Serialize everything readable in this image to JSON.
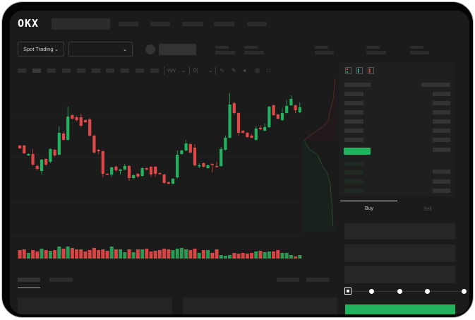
{
  "logo": {
    "text": "OKX"
  },
  "market_selector": {
    "label": "Spot Trading"
  },
  "trade_tabs": {
    "buy": "Buy",
    "sell": "Sell"
  },
  "colors": {
    "up": "#22b35e",
    "down": "#e04848",
    "background": "#1b1b1b",
    "panel": "#1f1f1f"
  },
  "icons": [
    "chevron-down-icon",
    "indicator-icon",
    "line-tool-icon",
    "pencil-icon",
    "camera-icon",
    "settings-icon",
    "fullscreen-icon",
    "orderbook-both-icon",
    "orderbook-bids-icon",
    "orderbook-asks-icon"
  ],
  "order_form": {
    "amount_slider_percent": 0
  },
  "chart_data": {
    "type": "candlestick",
    "title": "",
    "xlabel": "",
    "ylabel": "",
    "grid": true,
    "candles": [
      [
        197,
        198,
        192,
        193
      ],
      [
        197,
        198,
        185,
        186
      ],
      [
        183,
        186,
        182,
        185
      ],
      [
        185,
        192,
        168,
        170
      ],
      [
        168,
        170,
        162,
        164
      ],
      [
        161,
        178,
        156,
        177
      ],
      [
        178,
        179,
        168,
        170
      ],
      [
        174,
        193,
        172,
        192
      ],
      [
        191,
        192,
        181,
        183
      ],
      [
        184,
        224,
        183,
        215
      ],
      [
        214,
        217,
        204,
        205
      ],
      [
        205,
        252,
        204,
        238
      ],
      [
        240,
        241,
        234,
        235
      ],
      [
        237,
        239,
        231,
        233
      ],
      [
        237,
        242,
        223,
        225
      ],
      [
        233,
        234,
        229,
        230
      ],
      [
        234,
        236,
        210,
        211
      ],
      [
        211,
        212,
        186,
        187
      ],
      [
        191,
        192,
        185,
        189
      ],
      [
        189,
        190,
        152,
        157
      ],
      [
        157,
        158,
        155,
        156
      ],
      [
        156,
        167,
        153,
        166
      ],
      [
        167,
        169,
        160,
        162
      ],
      [
        161,
        164,
        156,
        163
      ],
      [
        163,
        171,
        162,
        168
      ],
      [
        168,
        169,
        147,
        151
      ],
      [
        151,
        156,
        149,
        155
      ],
      [
        157,
        158,
        151,
        153
      ],
      [
        154,
        166,
        153,
        165
      ],
      [
        165,
        166,
        162,
        163
      ],
      [
        167,
        168,
        153,
        156
      ],
      [
        167,
        168,
        153,
        157
      ],
      [
        158,
        159,
        156,
        157
      ],
      [
        156,
        157,
        143,
        144
      ],
      [
        145,
        146,
        142,
        143
      ],
      [
        143,
        151,
        142,
        150
      ],
      [
        152,
        190,
        150,
        184
      ],
      [
        185,
        191,
        184,
        190
      ],
      [
        190,
        205,
        189,
        200
      ],
      [
        199,
        200,
        186,
        187
      ],
      [
        194,
        199,
        167,
        169
      ],
      [
        168,
        172,
        165,
        169
      ],
      [
        172,
        173,
        166,
        167
      ],
      [
        165,
        170,
        164,
        169
      ],
      [
        171,
        172,
        159,
        170
      ],
      [
        168,
        174,
        166,
        167
      ],
      [
        168,
        195,
        167,
        192
      ],
      [
        191,
        211,
        190,
        208
      ],
      [
        208,
        271,
        207,
        255
      ],
      [
        257,
        259,
        241,
        243
      ],
      [
        243,
        244,
        211,
        215
      ],
      [
        218,
        219,
        214,
        215
      ],
      [
        215,
        216,
        208,
        209
      ],
      [
        211,
        213,
        207,
        208
      ],
      [
        205,
        224,
        204,
        221
      ],
      [
        222,
        226,
        219,
        220
      ],
      [
        218,
        228,
        217,
        223
      ],
      [
        223,
        253,
        222,
        252
      ],
      [
        254,
        255,
        239,
        240
      ],
      [
        241,
        242,
        234,
        235
      ],
      [
        233,
        250,
        232,
        243
      ],
      [
        243,
        261,
        242,
        253
      ],
      [
        254,
        268,
        253,
        263
      ],
      [
        254,
        255,
        243,
        247
      ],
      [
        244,
        258,
        243,
        251
      ]
    ],
    "volume": [
      12,
      13,
      8,
      12,
      10,
      14,
      12,
      11,
      12,
      17,
      14,
      17,
      15,
      13,
      13,
      10,
      12,
      15,
      12,
      13,
      11,
      17,
      13,
      13,
      9,
      13,
      9,
      13,
      13,
      14,
      10,
      11,
      12,
      14,
      13,
      12,
      14,
      15,
      13,
      12,
      14,
      8,
      12,
      12,
      8,
      13,
      5,
      4,
      5,
      8,
      7,
      8,
      7,
      8,
      10,
      11,
      9,
      10,
      10,
      12,
      8,
      8,
      5,
      3,
      5
    ]
  }
}
